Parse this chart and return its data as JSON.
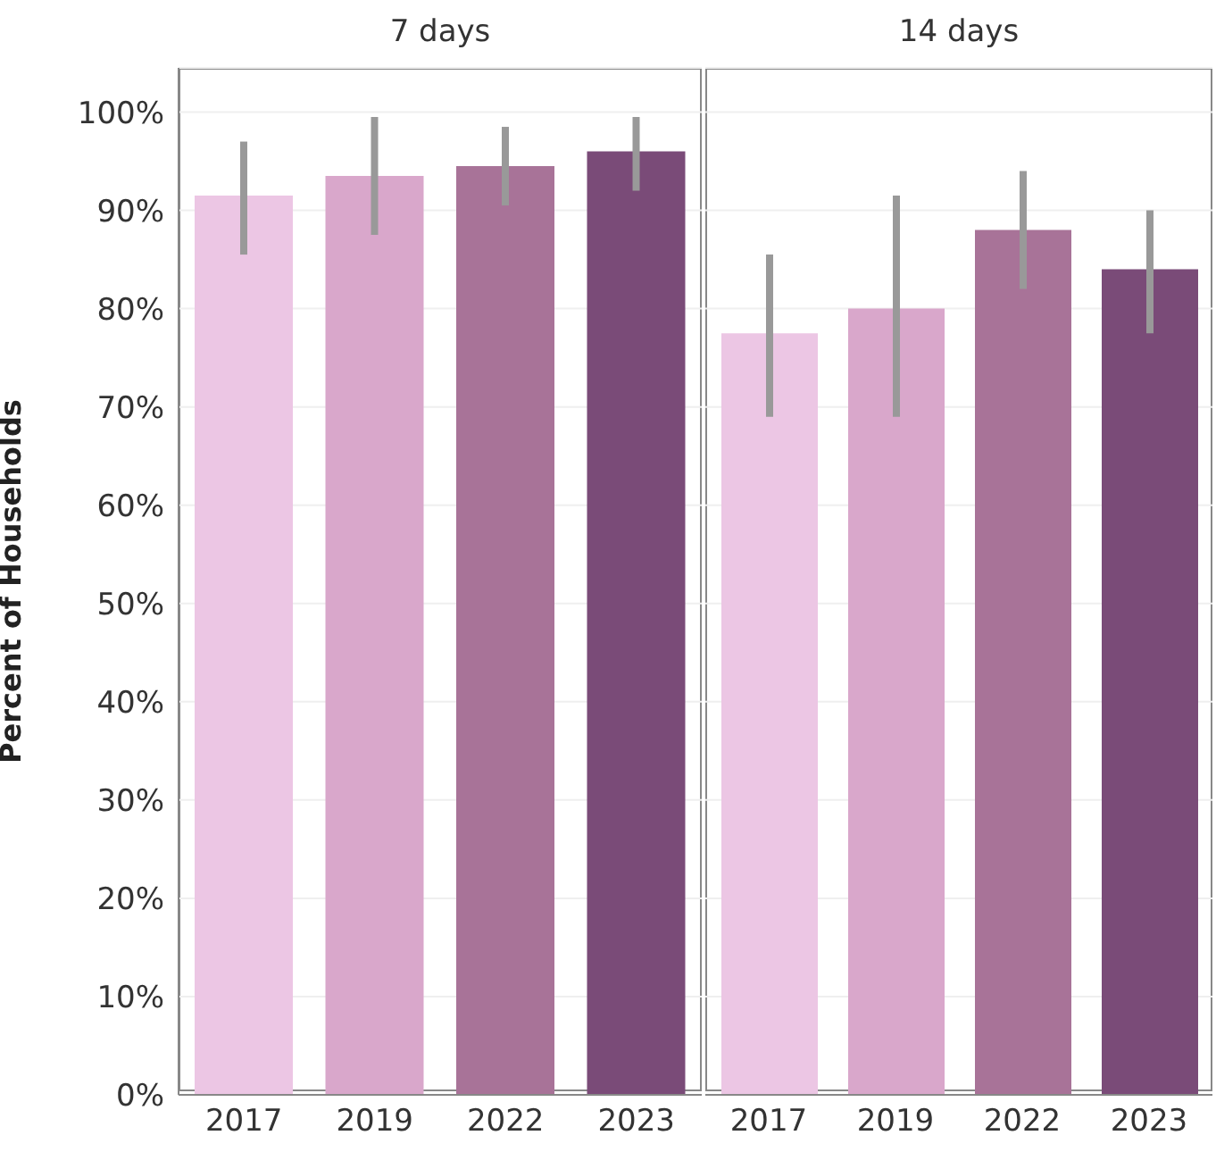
{
  "chart_data": [
    {
      "type": "bar",
      "title": "7 days",
      "ylabel": "Percent of Households",
      "categories": [
        "2017",
        "2019",
        "2022",
        "2023"
      ],
      "values": [
        91.5,
        93.5,
        94.5,
        96
      ],
      "errors": [
        [
          85.5,
          97
        ],
        [
          87.5,
          99.5
        ],
        [
          90.5,
          98.5
        ],
        [
          92,
          99.5
        ]
      ],
      "colors": [
        "#ecc6e4",
        "#d9a7cb",
        "#a87398",
        "#7a4b78"
      ],
      "ylim": [
        0,
        104.5
      ],
      "yticks": [
        {
          "value": 0,
          "label": "0%"
        },
        {
          "value": 10,
          "label": "10%"
        },
        {
          "value": 20,
          "label": "20%"
        },
        {
          "value": 30,
          "label": "30%"
        },
        {
          "value": 40,
          "label": "40%"
        },
        {
          "value": 50,
          "label": "50%"
        },
        {
          "value": 60,
          "label": "60%"
        },
        {
          "value": 70,
          "label": "70%"
        },
        {
          "value": 80,
          "label": "80%"
        },
        {
          "value": 90,
          "label": "90%"
        },
        {
          "value": 100,
          "label": "100%"
        }
      ],
      "grid": "y"
    },
    {
      "type": "bar",
      "title": "14 days",
      "categories": [
        "2017",
        "2019",
        "2022",
        "2023"
      ],
      "values": [
        77.5,
        80,
        88,
        84
      ],
      "errors": [
        [
          69,
          85.5
        ],
        [
          69,
          91.5
        ],
        [
          82,
          94
        ],
        [
          77.5,
          90
        ]
      ],
      "colors": [
        "#ecc6e4",
        "#d9a7cb",
        "#a87398",
        "#7a4b78"
      ],
      "ylim": [
        0,
        104.5
      ],
      "yticks": [
        0,
        10,
        20,
        30,
        40,
        50,
        60,
        70,
        80,
        90,
        100
      ],
      "grid": "y",
      "tick_labels": "x"
    }
  ]
}
